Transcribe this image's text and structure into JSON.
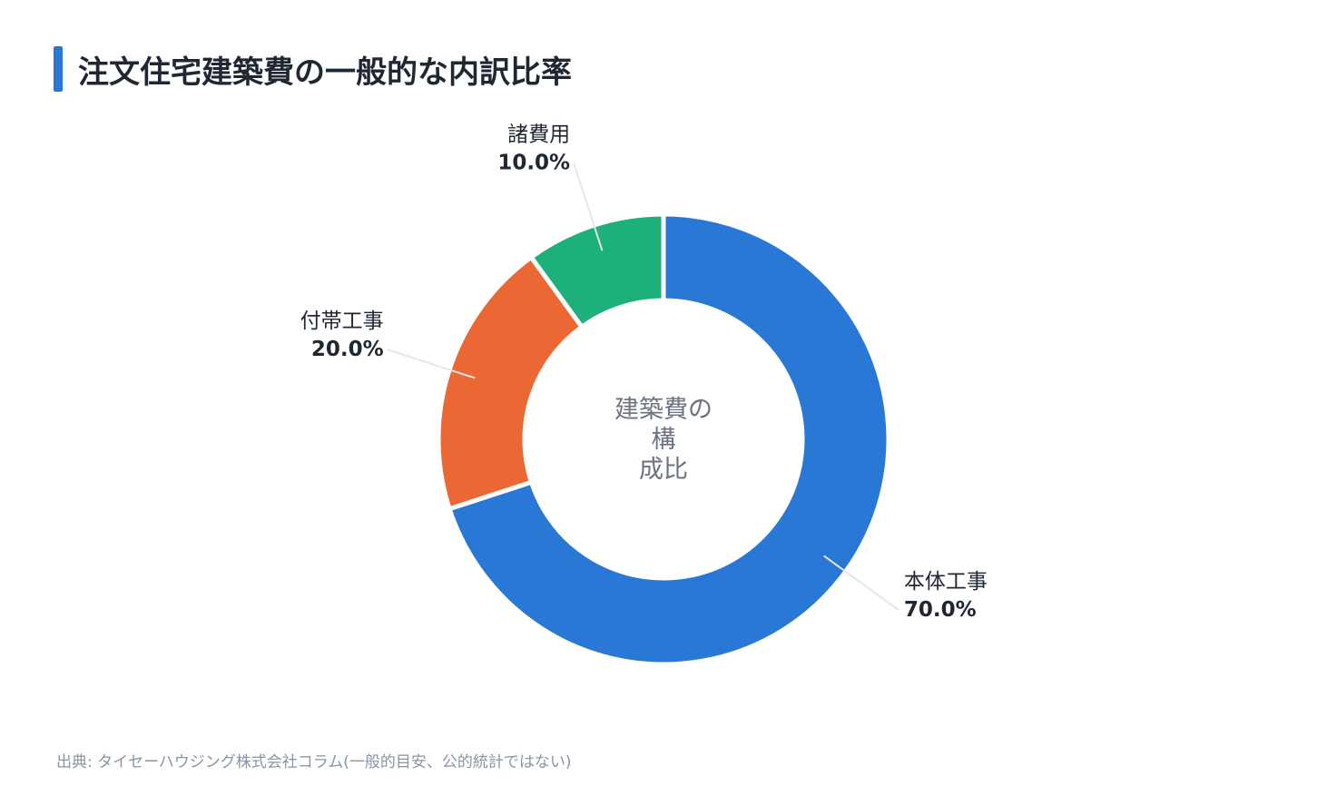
{
  "title": "注文住宅建築費の一般的な内訳比率",
  "source": "出典: タイセーハウジング株式会社コラム(一般的目安、公的統計ではない)",
  "chart_data": {
    "type": "pie",
    "donut": true,
    "center_label": [
      "建築費の",
      "構",
      "成比"
    ],
    "categories": [
      "本体工事",
      "付帯工事",
      "諸費用"
    ],
    "values": [
      70.0,
      20.0,
      10.0
    ],
    "value_labels": [
      "70.0%",
      "20.0%",
      "10.0%"
    ],
    "colors": [
      "#2a78d6",
      "#eb6834",
      "#1db07a"
    ],
    "unit": "%"
  }
}
